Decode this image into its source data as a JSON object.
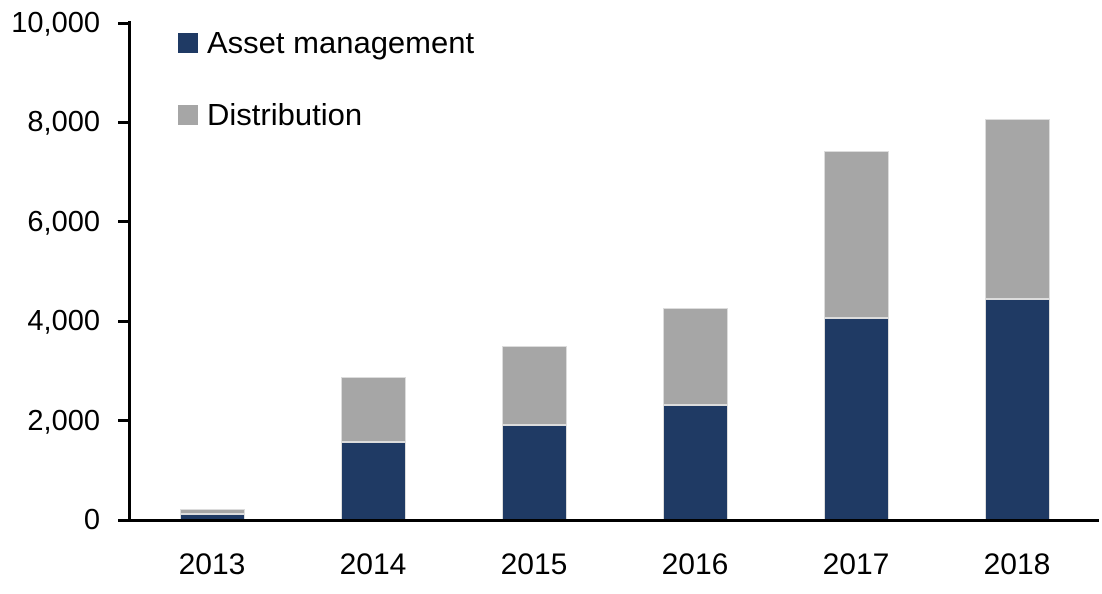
{
  "chart_data": {
    "type": "bar",
    "stacked": true,
    "title": "",
    "xlabel": "",
    "ylabel": "",
    "categories": [
      "2013",
      "2014",
      "2015",
      "2016",
      "2017",
      "2018"
    ],
    "series": [
      {
        "name": "Asset management",
        "color": "#1f3a64",
        "values": [
          120,
          1560,
          1905,
          2315,
          4060,
          4440
        ]
      },
      {
        "name": "Distribution",
        "color": "#a6a6a6",
        "values": [
          100,
          1310,
          1600,
          1945,
          3360,
          3625
        ]
      }
    ],
    "totals": [
      220,
      2870,
      3505,
      4260,
      7420,
      8065
    ],
    "ylim": [
      0,
      10000
    ],
    "y_ticks": [
      0,
      2000,
      4000,
      6000,
      8000,
      10000
    ],
    "y_tick_labels": [
      "0",
      "2,000",
      "4,000",
      "6,000",
      "8,000",
      "10,000"
    ],
    "grid": false,
    "legend_position": "top-left"
  },
  "colors": {
    "axis": "#000000",
    "text": "#000000",
    "background": "#ffffff",
    "bar_border": "#dcdcdc"
  }
}
